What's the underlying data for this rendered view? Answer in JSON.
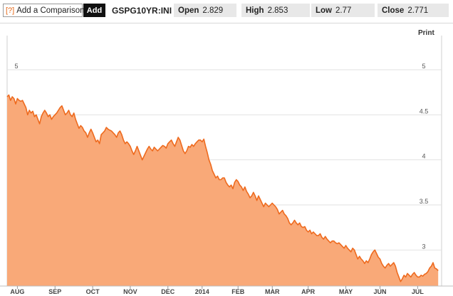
{
  "toolbar": {
    "compare_icon": "[?]",
    "compare_label": "Add a Comparison",
    "add_label": "Add",
    "symbol": "GSPG10YR:INI",
    "open": {
      "label": "Open",
      "value": "2.829"
    },
    "high": {
      "label": "High",
      "value": "2.853"
    },
    "low": {
      "label": "Low",
      "value": "2.77"
    },
    "close": {
      "label": "Close",
      "value": "2.771"
    }
  },
  "print_label": "Print",
  "colors": {
    "line": "#ee6a1e",
    "fill": "#f9a978"
  },
  "chart_data": {
    "type": "area",
    "ylim": [
      2.6,
      5.3
    ],
    "yticks": [
      3,
      3.5,
      4,
      4.5,
      5
    ],
    "ytick_labels": [
      "3",
      "3.5",
      "4",
      "4.5",
      "5"
    ],
    "xlabels": [
      "AUG",
      "SEP",
      "OCT",
      "NOV",
      "DEC",
      "2014",
      "FEB",
      "MAR",
      "APR",
      "MAY",
      "JUN",
      "JUL"
    ],
    "x_index_max": 254,
    "xlabel_positions": [
      6,
      28,
      50,
      72,
      94,
      114,
      135,
      155,
      176,
      198,
      218,
      240
    ],
    "series": [
      {
        "values": [
          4.7,
          4.72,
          4.66,
          4.7,
          4.68,
          4.62,
          4.68,
          4.66,
          4.65,
          4.66,
          4.62,
          4.58,
          4.5,
          4.55,
          4.52,
          4.54,
          4.48,
          4.5,
          4.45,
          4.4,
          4.48,
          4.52,
          4.55,
          4.52,
          4.48,
          4.5,
          4.45,
          4.48,
          4.5,
          4.52,
          4.55,
          4.58,
          4.6,
          4.55,
          4.5,
          4.52,
          4.55,
          4.5,
          4.48,
          4.52,
          4.45,
          4.4,
          4.35,
          4.38,
          4.36,
          4.32,
          4.3,
          4.25,
          4.3,
          4.34,
          4.3,
          4.25,
          4.2,
          4.22,
          4.18,
          4.28,
          4.3,
          4.32,
          4.36,
          4.34,
          4.33,
          4.32,
          4.3,
          4.28,
          4.25,
          4.3,
          4.32,
          4.28,
          4.22,
          4.18,
          4.2,
          4.18,
          4.15,
          4.1,
          4.06,
          4.1,
          4.15,
          4.1,
          4.05,
          4.0,
          4.04,
          4.08,
          4.12,
          4.15,
          4.12,
          4.1,
          4.14,
          4.12,
          4.1,
          4.12,
          4.14,
          4.16,
          4.15,
          4.13,
          4.18,
          4.2,
          4.22,
          4.18,
          4.15,
          4.2,
          4.25,
          4.22,
          4.16,
          4.1,
          4.07,
          4.1,
          4.15,
          4.14,
          4.17,
          4.15,
          4.18,
          4.2,
          4.22,
          4.22,
          4.2,
          4.23,
          4.15,
          4.08,
          4.0,
          3.95,
          3.88,
          3.84,
          3.8,
          3.82,
          3.78,
          3.78,
          3.8,
          3.8,
          3.75,
          3.72,
          3.7,
          3.72,
          3.68,
          3.75,
          3.78,
          3.76,
          3.72,
          3.7,
          3.66,
          3.7,
          3.65,
          3.62,
          3.58,
          3.6,
          3.64,
          3.6,
          3.55,
          3.6,
          3.56,
          3.52,
          3.48,
          3.52,
          3.5,
          3.48,
          3.5,
          3.52,
          3.5,
          3.48,
          3.45,
          3.4,
          3.42,
          3.44,
          3.4,
          3.38,
          3.35,
          3.3,
          3.28,
          3.3,
          3.33,
          3.3,
          3.28,
          3.3,
          3.26,
          3.25,
          3.26,
          3.22,
          3.2,
          3.22,
          3.18,
          3.2,
          3.18,
          3.16,
          3.16,
          3.18,
          3.14,
          3.12,
          3.15,
          3.12,
          3.1,
          3.08,
          3.1,
          3.1,
          3.08,
          3.07,
          3.08,
          3.06,
          3.04,
          3.02,
          3.05,
          3.02,
          3.0,
          2.98,
          3.02,
          3.0,
          2.95,
          2.9,
          2.93,
          2.9,
          2.88,
          2.85,
          2.88,
          2.86,
          2.9,
          2.95,
          2.98,
          3.0,
          2.96,
          2.92,
          2.9,
          2.85,
          2.82,
          2.8,
          2.83,
          2.85,
          2.82,
          2.84,
          2.86,
          2.82,
          2.75,
          2.7,
          2.65,
          2.68,
          2.72,
          2.7,
          2.74,
          2.72,
          2.7,
          2.73,
          2.75,
          2.72,
          2.7,
          2.7,
          2.72,
          2.71,
          2.73,
          2.74,
          2.76,
          2.8,
          2.82,
          2.86,
          2.8,
          2.79,
          2.771
        ]
      }
    ]
  }
}
